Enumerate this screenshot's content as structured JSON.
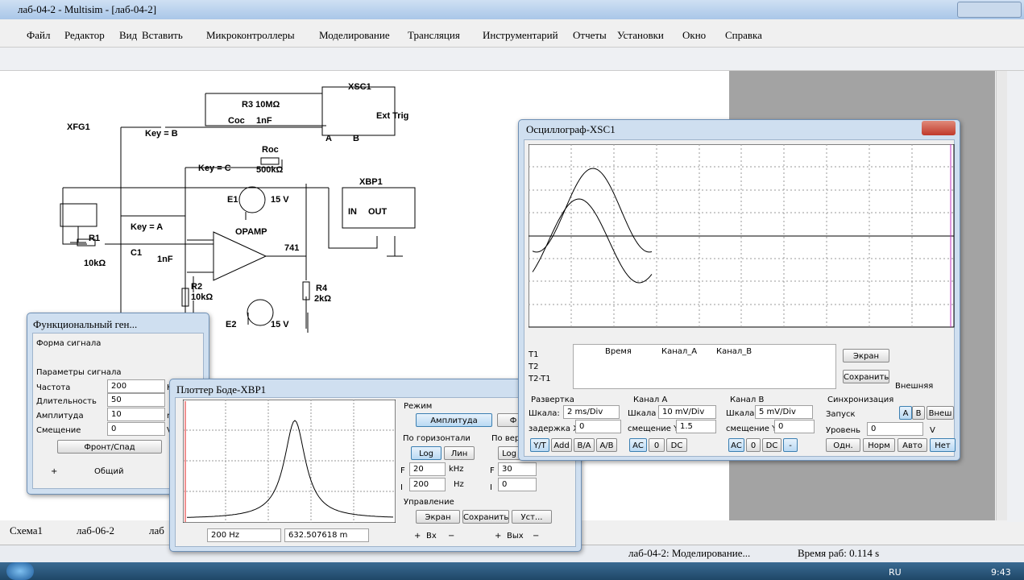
{
  "window": {
    "title": "лаб-04-2 - Multisim - [лаб-04-2]"
  },
  "menu": [
    "Файл",
    "Редактор",
    "Вид",
    "Вставить",
    "Микроконтроллеры",
    "Моделирование",
    "Трансляция",
    "Инструментарий",
    "Отчеты",
    "Установки",
    "Окно",
    "Справка"
  ],
  "tabs": [
    "Схема1",
    "лаб-06-2",
    "лаб"
  ],
  "status": [
    "лаб-04-2: Моделирование...",
    "Время раб: 0.114 s"
  ],
  "taskbar": {
    "language": "RU",
    "clock": "9:43"
  },
  "schematic": {
    "labels": [
      "XFG1",
      "Key = B",
      "R3 10MΩ",
      "Coc",
      "1nF",
      "XSC1",
      "Key = C",
      "Roc",
      "500kΩ",
      "XBP1",
      "E1",
      "15 V",
      "OPAMP",
      "741",
      "Key = A",
      "R1",
      "10kΩ",
      "C1",
      "1nF",
      "R2",
      "10kΩ",
      "R4",
      "2kΩ",
      "E2",
      "15 V",
      "IN",
      "OUT",
      "A",
      "B",
      "Ext Trig"
    ]
  },
  "oscilloscope": {
    "title": "Осциллограф-XSC1",
    "readout": {
      "rows": [
        "T1",
        "T2",
        "T2-T1"
      ],
      "columns": [
        "Время",
        "Канал_A",
        "Канал_B"
      ]
    },
    "buttons": [
      "Экран",
      "Сохранить"
    ],
    "external": "Внешняя",
    "timebase": {
      "title": "Развертка",
      "scale_label": "Шкала:",
      "scale": "2 ms/Div",
      "delay_label": "задержка X",
      "delay": "0",
      "modes": [
        "Y/T",
        "Add",
        "B/A",
        "A/B"
      ]
    },
    "channel_a": {
      "title": "Канал А",
      "scale_label": "Шкала",
      "scale": "10 mV/Div",
      "offset_label": "смещение Y",
      "offset": "1.5",
      "coupling": [
        "AC",
        "0",
        "DC"
      ]
    },
    "channel_b": {
      "title": "Канал В",
      "scale_label": "Шкала",
      "scale": "5 mV/Div",
      "offset_label": "смещение Y",
      "offset": "0",
      "coupling": [
        "AC",
        "0",
        "DC",
        "-"
      ]
    },
    "trigger": {
      "title": "Синхронизация",
      "edge_label": "Запуск",
      "sources": [
        "A",
        "B",
        "Внеш"
      ],
      "level_label": "Уровень",
      "level": "0",
      "unit": "V",
      "modes": [
        "Одн.",
        "Норм",
        "Авто",
        "Нет"
      ]
    }
  },
  "function_generator": {
    "title": "Функциональный ген...",
    "waveform_label": "Форма сигнала",
    "params_label": "Параметры сигнала",
    "params": [
      {
        "name": "Частота",
        "value": "200",
        "unit": "H"
      },
      {
        "name": "Длительность",
        "value": "50"
      },
      {
        "name": "Амплитуда",
        "value": "10",
        "unit": "m"
      },
      {
        "name": "Смещение",
        "value": "0",
        "unit": "V"
      }
    ],
    "edge_button": "Фронт/Спад",
    "terminals": [
      "+",
      "Общий"
    ]
  },
  "bode": {
    "title": "Плоттер Боде-XBP1",
    "mode_label": "Режим",
    "mode_buttons": [
      "Амплитуда",
      "Ф"
    ],
    "horizontal_label": "По горизонтали",
    "vertical_label": "По верт",
    "horizontal_buttons": [
      "Log",
      "Лин"
    ],
    "vertical_buttons": [
      "Log"
    ],
    "horizontal": {
      "final_label": "F",
      "final": "20",
      "final_unit": "kHz",
      "initial_label": "I",
      "initial": "200",
      "initial_unit": "Hz"
    },
    "vertical": {
      "final_label": "F",
      "final": "30",
      "initial_label": "I",
      "initial": "0"
    },
    "control_label": "Управление",
    "control_buttons": [
      "Экран",
      "Сохранить",
      "Уст..."
    ],
    "cursor_freq": "200 Hz",
    "cursor_value": "632.507618 m",
    "terminals": [
      "+",
      "Вх",
      "−",
      "+",
      "Вых",
      "−"
    ]
  }
}
